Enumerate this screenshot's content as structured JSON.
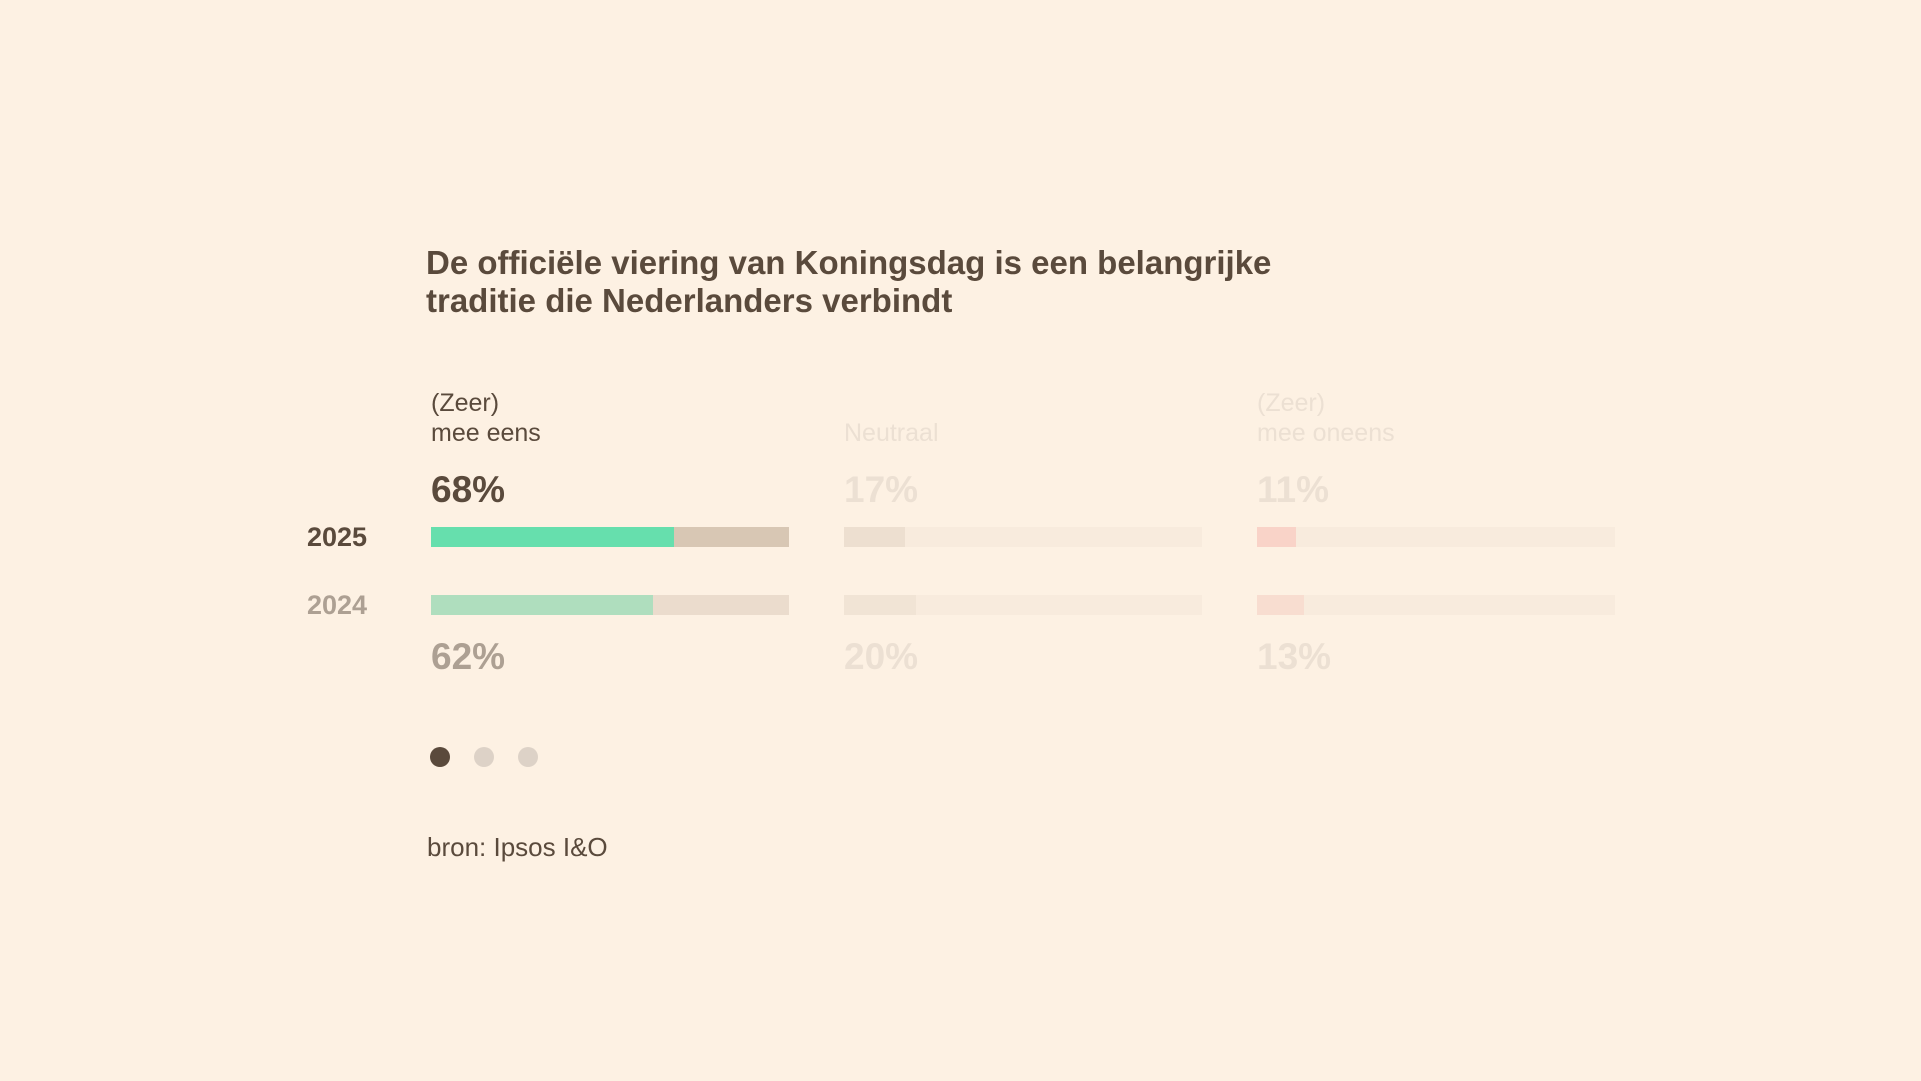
{
  "chart_data": {
    "type": "bar",
    "title": "De officiële viering van Koningsdag is een belangrijke traditie die Nederlanders verbindt",
    "years": [
      "2025",
      "2024"
    ],
    "active_category": 0,
    "categories": [
      {
        "label_lines": [
          "(Zeer)",
          "mee eens"
        ],
        "values": {
          "2025": 68,
          "2024": 62
        },
        "labels": {
          "2025": "68%",
          "2024": "62%"
        },
        "color": "#66dfad"
      },
      {
        "label_lines": [
          "Neutraal"
        ],
        "values": {
          "2025": 17,
          "2024": 20
        },
        "labels": {
          "2025": "17%",
          "2024": "20%"
        },
        "color": "#eddfd0"
      },
      {
        "label_lines": [
          "(Zeer)",
          "mee oneens"
        ],
        "values": {
          "2025": 11,
          "2024": 13
        },
        "labels": {
          "2025": "11%",
          "2024": "13%"
        },
        "color": "#f9d3c8"
      }
    ],
    "xlim": [
      0,
      100
    ]
  },
  "pagination": {
    "total": 3,
    "active": 0
  },
  "source": "bron: Ipsos I&O",
  "colors": {
    "background": "#fdf1e3",
    "text": "#5a4a3c",
    "muted_text": "#ada093",
    "faded_text": "#ece0d3",
    "track_active_2025": "#d8c7b4",
    "track_active_2024": "#ebdccd",
    "track_inactive": "#f8ebdd",
    "dot_active": "#5a4a3c",
    "dot_inactive": "#ddd2c7"
  }
}
